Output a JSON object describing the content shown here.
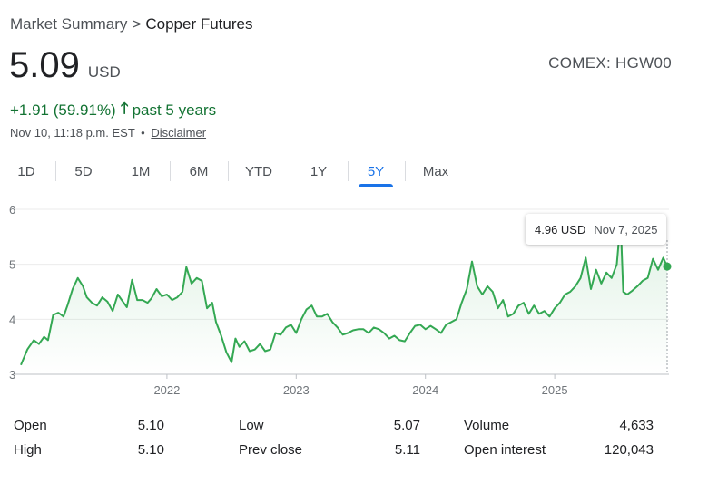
{
  "breadcrumb": {
    "parent": "Market Summary",
    "separator": ">",
    "current": "Copper Futures"
  },
  "quote": {
    "price": "5.09",
    "currency": "USD",
    "exchange": "COMEX: HGW00",
    "change": "+1.91 (59.91%)",
    "change_arrow_icon": "arrow-up-icon",
    "change_period": "past 5 years",
    "timestamp": "Nov 10, 11:18 p.m. EST",
    "meta_separator": "•",
    "disclaimer": "Disclaimer"
  },
  "colors": {
    "positive": "#137333",
    "line": "#34a853",
    "accent": "#1a73e8"
  },
  "tabs": [
    {
      "label": "1D",
      "active": false
    },
    {
      "label": "5D",
      "active": false
    },
    {
      "label": "1M",
      "active": false
    },
    {
      "label": "6M",
      "active": false
    },
    {
      "label": "YTD",
      "active": false
    },
    {
      "label": "1Y",
      "active": false
    },
    {
      "label": "5Y",
      "active": true
    },
    {
      "label": "Max",
      "active": false
    }
  ],
  "tooltip": {
    "price": "4.96 USD",
    "date": "Nov 7, 2025"
  },
  "stats": [
    [
      {
        "label": "Open",
        "value": "5.10"
      },
      {
        "label": "Low",
        "value": "5.07"
      },
      {
        "label": "Volume",
        "value": "4,633"
      }
    ],
    [
      {
        "label": "High",
        "value": "5.10"
      },
      {
        "label": "Prev close",
        "value": "5.11"
      },
      {
        "label": "Open interest",
        "value": "120,043"
      }
    ]
  ],
  "chart_data": {
    "type": "area",
    "title": "",
    "xlabel": "",
    "ylabel": "",
    "ylim": [
      3,
      6
    ],
    "xlim": [
      2020.87,
      2025.87
    ],
    "yticks": [
      "3",
      "4",
      "5",
      "6"
    ],
    "xticks": [
      {
        "value": 2022.0,
        "label": "2022"
      },
      {
        "value": 2023.0,
        "label": "2023"
      },
      {
        "value": 2024.0,
        "label": "2024"
      },
      {
        "value": 2025.0,
        "label": "2025"
      }
    ],
    "grid": true,
    "series": [
      {
        "x": [
          2020.87,
          2020.92,
          2020.97,
          2021.01,
          2021.05,
          2021.08,
          2021.12,
          2021.16,
          2021.2,
          2021.23,
          2021.27,
          2021.31,
          2021.35,
          2021.38,
          2021.42,
          2021.46,
          2021.5,
          2021.54,
          2021.58,
          2021.62,
          2021.65,
          2021.69,
          2021.73,
          2021.77,
          2021.81,
          2021.85,
          2021.88,
          2021.92,
          2021.96,
          2022.0,
          2022.04,
          2022.08,
          2022.12,
          2022.15,
          2022.19,
          2022.23,
          2022.27,
          2022.31,
          2022.35,
          2022.38,
          2022.42,
          2022.46,
          2022.5,
          2022.53,
          2022.56,
          2022.6,
          2022.64,
          2022.68,
          2022.72,
          2022.76,
          2022.8,
          2022.84,
          2022.88,
          2022.92,
          2022.96,
          2023.0,
          2023.04,
          2023.08,
          2023.12,
          2023.16,
          2023.2,
          2023.24,
          2023.28,
          2023.32,
          2023.36,
          2023.4,
          2023.44,
          2023.48,
          2023.52,
          2023.56,
          2023.6,
          2023.64,
          2023.68,
          2023.72,
          2023.76,
          2023.8,
          2023.84,
          2023.88,
          2023.92,
          2023.96,
          2024.0,
          2024.04,
          2024.08,
          2024.12,
          2024.16,
          2024.2,
          2024.24,
          2024.28,
          2024.32,
          2024.36,
          2024.4,
          2024.44,
          2024.48,
          2024.52,
          2024.56,
          2024.6,
          2024.64,
          2024.68,
          2024.72,
          2024.76,
          2024.8,
          2024.84,
          2024.88,
          2024.92,
          2024.96,
          2025.0,
          2025.04,
          2025.08,
          2025.12,
          2025.16,
          2025.2,
          2025.24,
          2025.28,
          2025.32,
          2025.36,
          2025.4,
          2025.44,
          2025.48,
          2025.51,
          2025.53,
          2025.56,
          2025.6,
          2025.64,
          2025.68,
          2025.72,
          2025.76,
          2025.8,
          2025.84,
          2025.87
        ],
        "y": [
          3.17,
          3.45,
          3.62,
          3.55,
          3.68,
          3.62,
          4.08,
          4.12,
          4.05,
          4.25,
          4.55,
          4.75,
          4.6,
          4.4,
          4.3,
          4.25,
          4.4,
          4.32,
          4.15,
          4.45,
          4.35,
          4.22,
          4.72,
          4.35,
          4.35,
          4.3,
          4.38,
          4.55,
          4.42,
          4.45,
          4.35,
          4.4,
          4.5,
          4.95,
          4.65,
          4.75,
          4.7,
          4.2,
          4.3,
          3.95,
          3.7,
          3.4,
          3.22,
          3.65,
          3.5,
          3.6,
          3.42,
          3.45,
          3.55,
          3.42,
          3.45,
          3.75,
          3.72,
          3.85,
          3.9,
          3.75,
          4.0,
          4.18,
          4.25,
          4.05,
          4.05,
          4.1,
          3.95,
          3.85,
          3.72,
          3.75,
          3.8,
          3.82,
          3.82,
          3.75,
          3.85,
          3.82,
          3.75,
          3.65,
          3.7,
          3.62,
          3.6,
          3.75,
          3.88,
          3.9,
          3.82,
          3.88,
          3.82,
          3.75,
          3.9,
          3.95,
          4.0,
          4.3,
          4.55,
          5.05,
          4.6,
          4.45,
          4.6,
          4.5,
          4.2,
          4.35,
          4.05,
          4.1,
          4.25,
          4.3,
          4.1,
          4.25,
          4.1,
          4.15,
          4.05,
          4.2,
          4.3,
          4.45,
          4.5,
          4.6,
          4.75,
          5.12,
          4.55,
          4.9,
          4.65,
          4.85,
          4.75,
          5.0,
          5.8,
          4.5,
          4.45,
          4.52,
          4.6,
          4.7,
          4.75,
          5.1,
          4.9,
          5.12,
          4.96
        ]
      }
    ]
  }
}
